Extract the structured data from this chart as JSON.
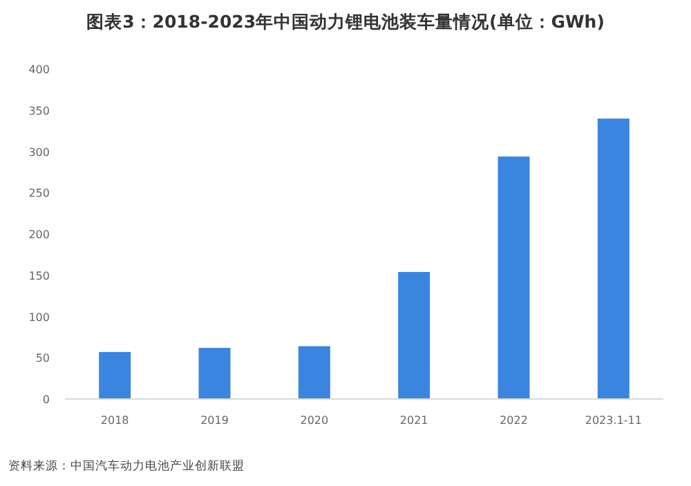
{
  "chart_data": {
    "type": "bar",
    "title": "图表3：2018-2023年中国动力锂电池装车量情况(单位：GWh)",
    "categories": [
      "2018",
      "2019",
      "2020",
      "2021",
      "2022",
      "2023.1-11"
    ],
    "values": [
      57,
      62,
      64,
      154,
      294,
      340
    ],
    "color": "#3a85e0",
    "ylim": [
      0,
      400
    ],
    "yticks": [
      0,
      50,
      100,
      150,
      200,
      250,
      300,
      350,
      400
    ],
    "annotations": [
      "资料来源：中国汽车动力电池产业创新联盟"
    ]
  }
}
